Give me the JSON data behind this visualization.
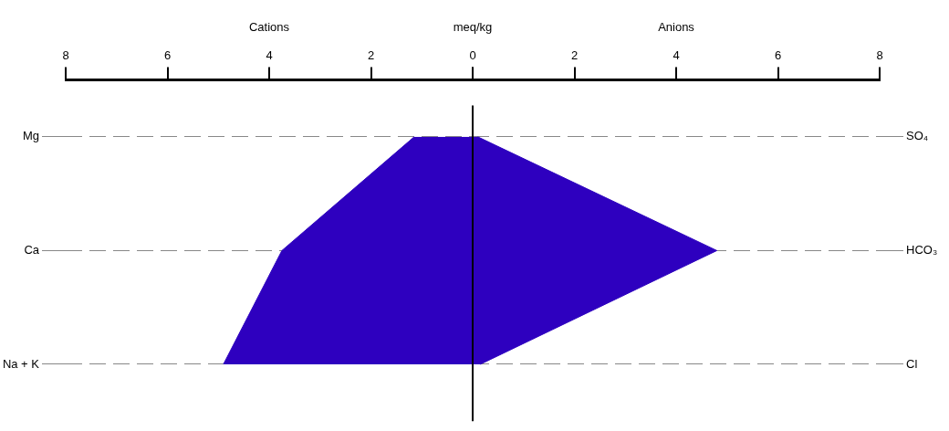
{
  "chart_data": [
    {
      "type": "area",
      "orientation": "horizontal",
      "xlabel": "meq/kg",
      "annotations": [
        "Cations"
      ],
      "categories": [
        "Mg",
        "Ca",
        "Na + K"
      ],
      "series": [
        {
          "color": "#2e00bf",
          "values": [
            1.15,
            3.75,
            4.9
          ]
        }
      ],
      "xlim": [
        8,
        0
      ],
      "xticks": [
        8,
        6,
        4,
        2,
        0
      ],
      "ref_lines": [
        {
          "axis": "x",
          "value": 0,
          "color": "#000000"
        }
      ],
      "grid": "y",
      "legend": false,
      "marker": "none"
    },
    {
      "type": "area",
      "orientation": "horizontal",
      "annotations": [
        "Anions"
      ],
      "categories": [
        "SO₄",
        "HCO₃",
        "Cl"
      ],
      "series": [
        {
          "color": "#2e00bf",
          "values": [
            0.1,
            4.8,
            0.15
          ]
        }
      ],
      "xlim": [
        0,
        8
      ],
      "xticks": [
        {
          "value": 0,
          "label": null
        },
        2,
        4,
        6,
        8
      ],
      "grid": "y",
      "legend": false,
      "marker": "none"
    }
  ]
}
